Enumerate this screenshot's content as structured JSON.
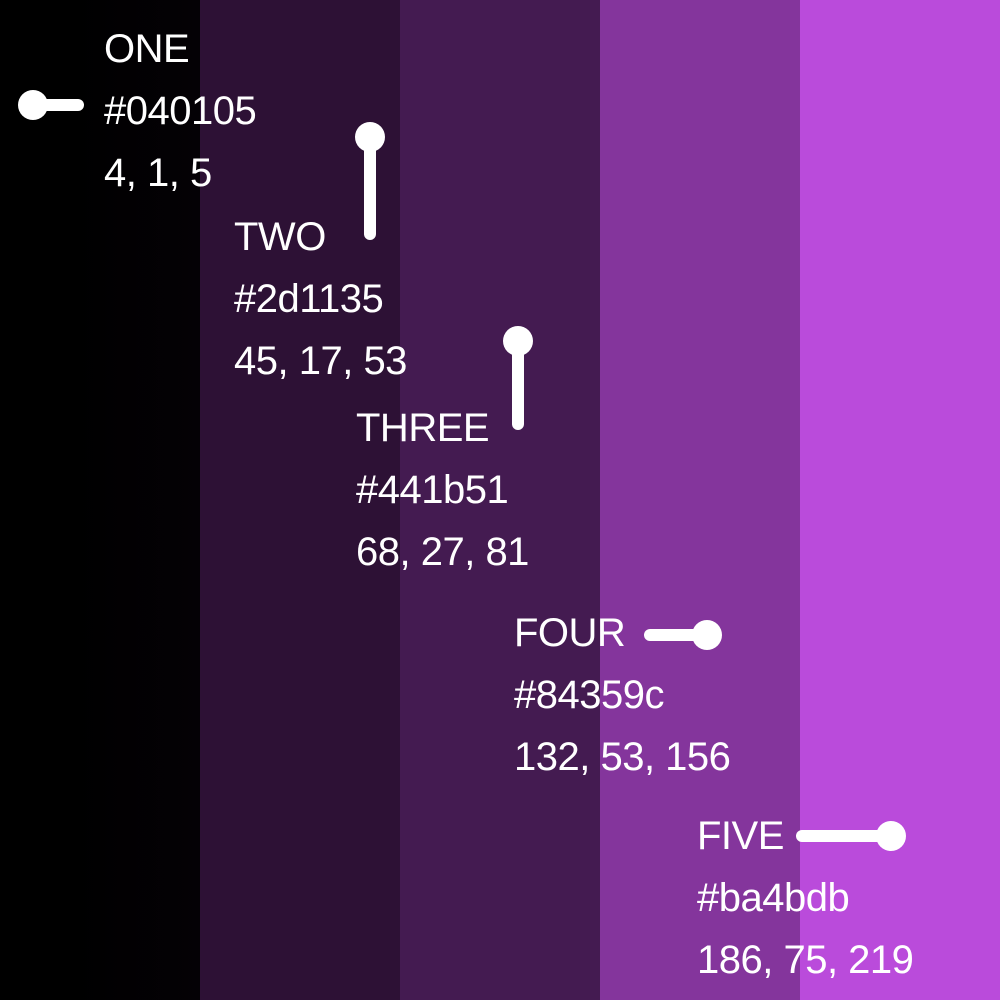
{
  "swatches": [
    {
      "name": "ONE",
      "hex": "#040105",
      "rgb": "4, 1, 5",
      "color": "#040105"
    },
    {
      "name": "TWO",
      "hex": "#2d1135",
      "rgb": "45, 17, 53",
      "color": "#2d1135"
    },
    {
      "name": "THREE",
      "hex": "#441b51",
      "rgb": "68, 27, 81",
      "color": "#441b51"
    },
    {
      "name": "FOUR",
      "hex": "#84359c",
      "rgb": "132, 53, 156",
      "color": "#84359c"
    },
    {
      "name": "FIVE",
      "hex": "#ba4bdb",
      "rgb": "186, 75, 219",
      "color": "#ba4bdb"
    }
  ],
  "text_color": "#ffffff"
}
